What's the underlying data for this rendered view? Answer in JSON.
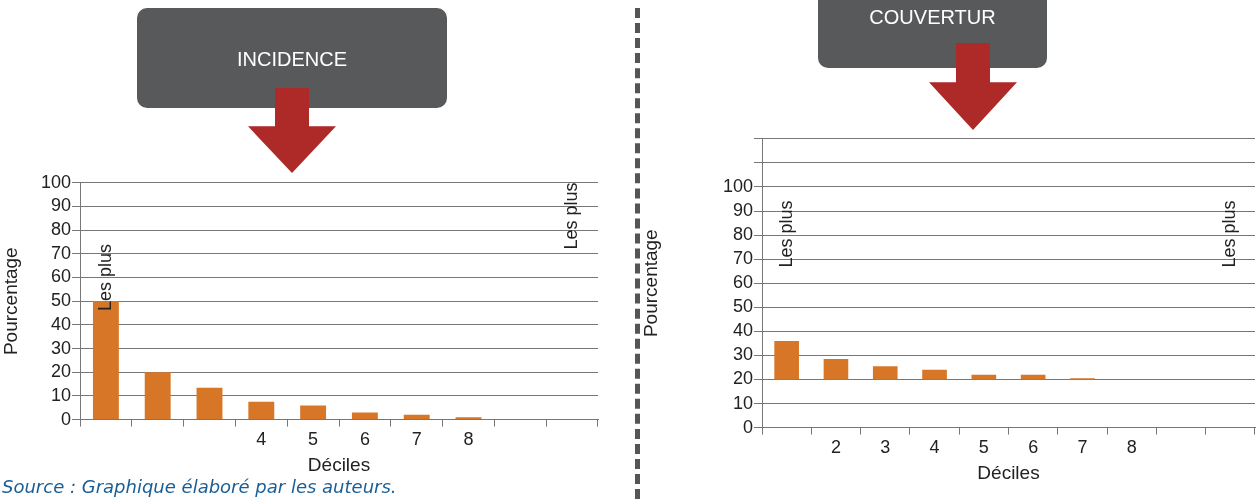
{
  "chart_data": [
    {
      "type": "bar",
      "title": "INCIDENCE",
      "xlabel": "Déciles",
      "ylabel": "Pourcentage",
      "categories": [
        null,
        null,
        null,
        "4",
        "5",
        "6",
        "7",
        "8",
        null,
        null
      ],
      "values": [
        50,
        20,
        13.5,
        7.5,
        6,
        3,
        2,
        1,
        null,
        null
      ],
      "color": "#d87628",
      "ylim": [
        0,
        100
      ],
      "yticks": [
        0,
        10,
        20,
        30,
        40,
        50,
        60,
        70,
        80,
        90,
        100
      ],
      "grid": "y",
      "legend": false,
      "annotations": [
        "Les plus",
        "Les plus",
        "Source : Graphique élaboré par les auteurs."
      ]
    },
    {
      "type": "bar",
      "title": "COUVERTUR",
      "xlabel": "Déciles",
      "ylabel": "Pourcentage",
      "categories": [
        null,
        "2",
        "3",
        "4",
        "5",
        "6",
        "7",
        "8",
        null,
        null
      ],
      "values": [
        16,
        8.5,
        5.5,
        4,
        2,
        2,
        0.5,
        null,
        null,
        null
      ],
      "base": [
        20,
        20,
        20,
        20,
        20,
        20,
        20,
        null,
        null,
        null
      ],
      "color": "#d87628",
      "ylim": [
        0,
        120
      ],
      "yticks": [
        0,
        10,
        20,
        30,
        40,
        50,
        60,
        70,
        80,
        90,
        100,
        {
          "value": 110,
          "label": null
        },
        {
          "value": 120,
          "label": null
        }
      ],
      "grid": "y",
      "legend": false,
      "annotations": [
        "Les plus",
        "Les plus"
      ]
    }
  ]
}
